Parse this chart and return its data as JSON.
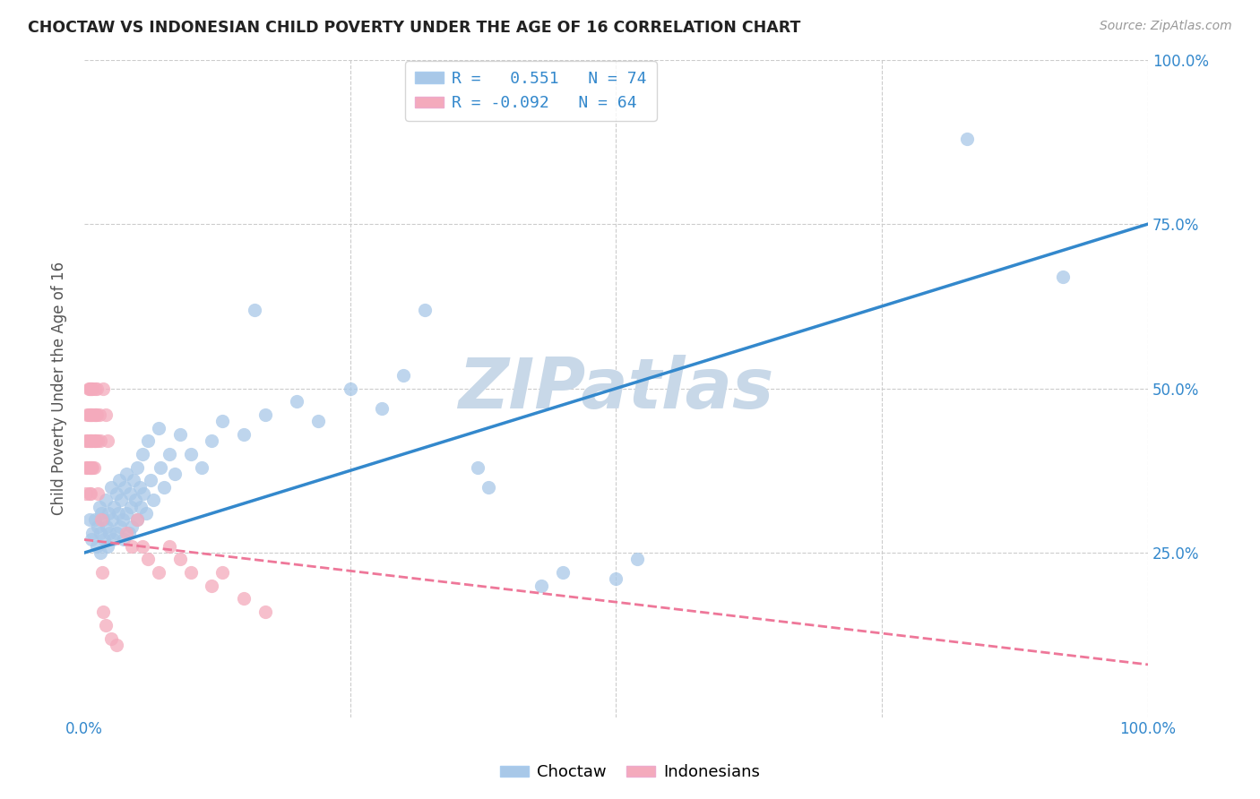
{
  "title": "CHOCTAW VS INDONESIAN CHILD POVERTY UNDER THE AGE OF 16 CORRELATION CHART",
  "source": "Source: ZipAtlas.com",
  "ylabel": "Child Poverty Under the Age of 16",
  "xlim": [
    0,
    1
  ],
  "ylim": [
    0,
    1
  ],
  "choctaw_color": "#A8C8E8",
  "indonesian_color": "#F4AABC",
  "choctaw_R": 0.551,
  "choctaw_N": 74,
  "indonesian_R": -0.092,
  "indonesian_N": 64,
  "choctaw_line_color": "#3388CC",
  "indonesian_line_color": "#EE7799",
  "background_color": "#FFFFFF",
  "watermark": "ZIPatlas",
  "watermark_color": "#C8D8E8",
  "grid_color": "#CCCCCC",
  "choctaw_line_y0": 0.25,
  "choctaw_line_y1": 0.75,
  "indonesian_line_y0": 0.27,
  "indonesian_line_y1": 0.08,
  "choctaw_points": [
    [
      0.005,
      0.3
    ],
    [
      0.007,
      0.27
    ],
    [
      0.008,
      0.28
    ],
    [
      0.01,
      0.3
    ],
    [
      0.012,
      0.26
    ],
    [
      0.013,
      0.29
    ],
    [
      0.014,
      0.32
    ],
    [
      0.015,
      0.28
    ],
    [
      0.015,
      0.25
    ],
    [
      0.016,
      0.31
    ],
    [
      0.018,
      0.3
    ],
    [
      0.019,
      0.27
    ],
    [
      0.02,
      0.33
    ],
    [
      0.021,
      0.29
    ],
    [
      0.022,
      0.26
    ],
    [
      0.023,
      0.31
    ],
    [
      0.024,
      0.28
    ],
    [
      0.025,
      0.35
    ],
    [
      0.026,
      0.3
    ],
    [
      0.027,
      0.27
    ],
    [
      0.028,
      0.32
    ],
    [
      0.03,
      0.34
    ],
    [
      0.03,
      0.28
    ],
    [
      0.032,
      0.31
    ],
    [
      0.033,
      0.36
    ],
    [
      0.034,
      0.29
    ],
    [
      0.035,
      0.33
    ],
    [
      0.036,
      0.3
    ],
    [
      0.037,
      0.27
    ],
    [
      0.038,
      0.35
    ],
    [
      0.04,
      0.37
    ],
    [
      0.04,
      0.31
    ],
    [
      0.042,
      0.28
    ],
    [
      0.043,
      0.34
    ],
    [
      0.044,
      0.32
    ],
    [
      0.045,
      0.29
    ],
    [
      0.046,
      0.36
    ],
    [
      0.048,
      0.33
    ],
    [
      0.05,
      0.38
    ],
    [
      0.05,
      0.3
    ],
    [
      0.052,
      0.35
    ],
    [
      0.053,
      0.32
    ],
    [
      0.055,
      0.4
    ],
    [
      0.056,
      0.34
    ],
    [
      0.058,
      0.31
    ],
    [
      0.06,
      0.42
    ],
    [
      0.062,
      0.36
    ],
    [
      0.065,
      0.33
    ],
    [
      0.07,
      0.44
    ],
    [
      0.072,
      0.38
    ],
    [
      0.075,
      0.35
    ],
    [
      0.08,
      0.4
    ],
    [
      0.085,
      0.37
    ],
    [
      0.09,
      0.43
    ],
    [
      0.1,
      0.4
    ],
    [
      0.11,
      0.38
    ],
    [
      0.12,
      0.42
    ],
    [
      0.13,
      0.45
    ],
    [
      0.15,
      0.43
    ],
    [
      0.17,
      0.46
    ],
    [
      0.2,
      0.48
    ],
    [
      0.22,
      0.45
    ],
    [
      0.25,
      0.5
    ],
    [
      0.28,
      0.47
    ],
    [
      0.3,
      0.52
    ],
    [
      0.16,
      0.62
    ],
    [
      0.32,
      0.62
    ],
    [
      0.37,
      0.38
    ],
    [
      0.38,
      0.35
    ],
    [
      0.43,
      0.2
    ],
    [
      0.45,
      0.22
    ],
    [
      0.5,
      0.21
    ],
    [
      0.52,
      0.24
    ],
    [
      0.83,
      0.88
    ],
    [
      0.92,
      0.67
    ]
  ],
  "indonesian_points": [
    [
      0.002,
      0.42
    ],
    [
      0.002,
      0.38
    ],
    [
      0.002,
      0.34
    ],
    [
      0.003,
      0.46
    ],
    [
      0.003,
      0.42
    ],
    [
      0.003,
      0.38
    ],
    [
      0.004,
      0.5
    ],
    [
      0.004,
      0.46
    ],
    [
      0.004,
      0.42
    ],
    [
      0.004,
      0.38
    ],
    [
      0.005,
      0.5
    ],
    [
      0.005,
      0.46
    ],
    [
      0.005,
      0.42
    ],
    [
      0.005,
      0.38
    ],
    [
      0.005,
      0.34
    ],
    [
      0.006,
      0.5
    ],
    [
      0.006,
      0.46
    ],
    [
      0.006,
      0.42
    ],
    [
      0.006,
      0.38
    ],
    [
      0.006,
      0.34
    ],
    [
      0.007,
      0.5
    ],
    [
      0.007,
      0.46
    ],
    [
      0.007,
      0.42
    ],
    [
      0.007,
      0.38
    ],
    [
      0.008,
      0.5
    ],
    [
      0.008,
      0.46
    ],
    [
      0.008,
      0.42
    ],
    [
      0.008,
      0.38
    ],
    [
      0.009,
      0.46
    ],
    [
      0.009,
      0.42
    ],
    [
      0.009,
      0.38
    ],
    [
      0.01,
      0.5
    ],
    [
      0.01,
      0.46
    ],
    [
      0.01,
      0.42
    ],
    [
      0.011,
      0.46
    ],
    [
      0.011,
      0.42
    ],
    [
      0.012,
      0.5
    ],
    [
      0.012,
      0.46
    ],
    [
      0.013,
      0.42
    ],
    [
      0.014,
      0.46
    ],
    [
      0.015,
      0.42
    ],
    [
      0.018,
      0.5
    ],
    [
      0.02,
      0.46
    ],
    [
      0.022,
      0.42
    ],
    [
      0.013,
      0.34
    ],
    [
      0.016,
      0.3
    ],
    [
      0.017,
      0.22
    ],
    [
      0.018,
      0.16
    ],
    [
      0.02,
      0.14
    ],
    [
      0.025,
      0.12
    ],
    [
      0.03,
      0.11
    ],
    [
      0.04,
      0.28
    ],
    [
      0.045,
      0.26
    ],
    [
      0.05,
      0.3
    ],
    [
      0.055,
      0.26
    ],
    [
      0.06,
      0.24
    ],
    [
      0.07,
      0.22
    ],
    [
      0.08,
      0.26
    ],
    [
      0.09,
      0.24
    ],
    [
      0.1,
      0.22
    ],
    [
      0.12,
      0.2
    ],
    [
      0.13,
      0.22
    ],
    [
      0.15,
      0.18
    ],
    [
      0.17,
      0.16
    ]
  ]
}
